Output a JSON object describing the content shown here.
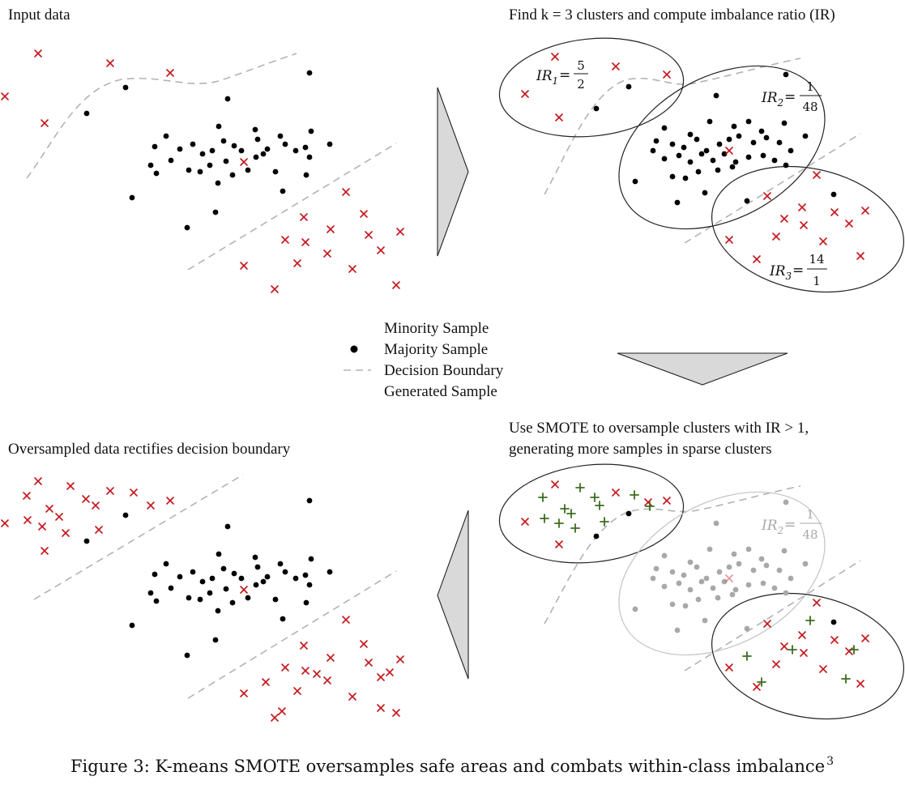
{
  "panels": {
    "top_left": {
      "title": "Input data"
    },
    "top_right": {
      "title": "Find k = 3 clusters and compute imbalance ratio (IR)",
      "ir1": {
        "sym": "IR",
        "sub": "1",
        "num": "5",
        "den": "2"
      },
      "ir2": {
        "sym": "IR",
        "sub": "2",
        "num": "1",
        "den": "48"
      },
      "ir3": {
        "sym": "IR",
        "sub": "3",
        "num": "14",
        "den": "1"
      }
    },
    "bottom_left": {
      "title": "Oversampled data rectifies decision boundary"
    },
    "bottom_right": {
      "title_line1": "Use SMOTE to oversample clusters with IR > 1,",
      "title_line2": "generating more samples in sparse clusters",
      "ir2": {
        "sym": "IR",
        "sub": "2",
        "num": "1",
        "den": "48"
      }
    }
  },
  "legend": {
    "minority": "Minority Sample",
    "majority": "Majority Sample",
    "boundary": "Decision Boundary",
    "generated": "Generated Sample"
  },
  "caption": {
    "text": "Figure 3: K-means SMOTE oversamples safe areas and combats within-class imbalance",
    "sup": "3"
  },
  "colors": {
    "minority": "#c4161c",
    "majority": "#000000",
    "generated": "#3b6d1e",
    "boundary": "#b3b3b3",
    "faded": "#a8a8a8"
  }
}
